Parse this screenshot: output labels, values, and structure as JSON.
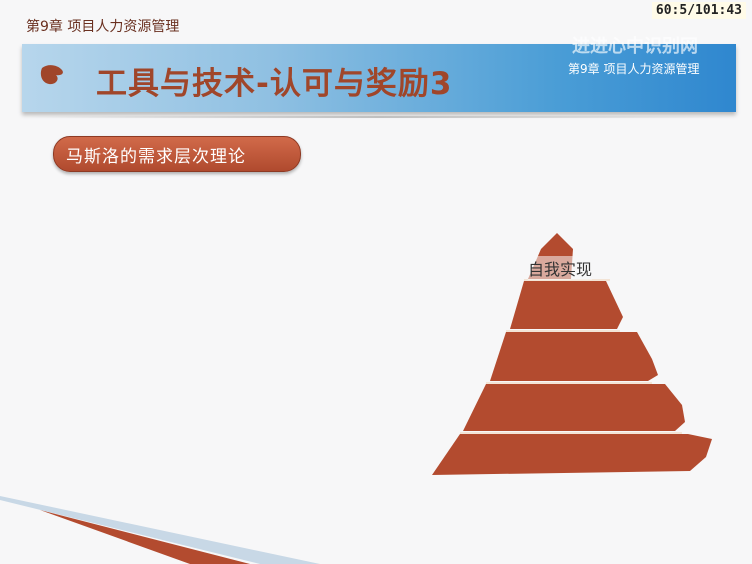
{
  "header": {
    "chapter": "第9章 项目人力资源管理",
    "timer": "60:5/101:43"
  },
  "title_band": {
    "title": "工具与技术-认可与奖励3",
    "ghost_text": "进进心中识别网",
    "chapter_sub": "第9章 项目人力资源管理"
  },
  "content": {
    "topic_pill": "马斯洛的需求层次理论",
    "pyramid": {
      "top_label": "自我实现",
      "levels": 5
    }
  },
  "colors": {
    "accent": "#b34b2f",
    "title_text": "#a0462a",
    "band_blue": "#3f94d4"
  }
}
